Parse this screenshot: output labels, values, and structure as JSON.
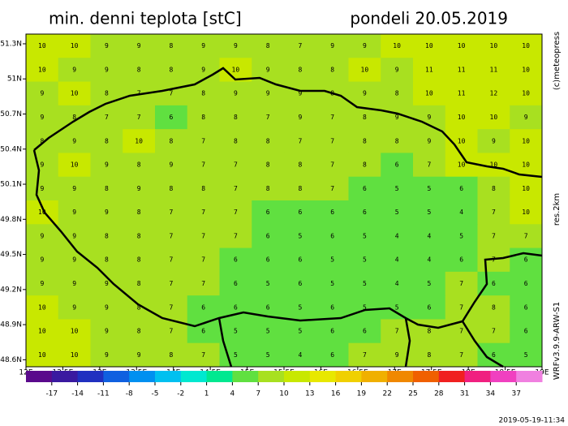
{
  "title": "min. denni teplota [stC]",
  "date": "pondeli 20.05.2019",
  "copyright": "(c)meteopress",
  "resolution": "res.2km",
  "model": "WRFv3.9.9-ARW-S1",
  "timestamp": "2019-05-19-11:34",
  "xlim": [
    12,
    19
  ],
  "ylim": [
    48.54,
    51.383
  ],
  "xticks": [
    {
      "value": 12,
      "label": "12E"
    },
    {
      "value": 12.5,
      "label": "12.5E"
    },
    {
      "value": 13,
      "label": "13E"
    },
    {
      "value": 13.5,
      "label": "13.5E"
    },
    {
      "value": 14,
      "label": "14E"
    },
    {
      "value": 14.5,
      "label": "14.5E"
    },
    {
      "value": 15,
      "label": "15E"
    },
    {
      "value": 15.5,
      "label": "15.5E"
    },
    {
      "value": 16,
      "label": "16E"
    },
    {
      "value": 16.5,
      "label": "16.5E"
    },
    {
      "value": 17,
      "label": "17E"
    },
    {
      "value": 17.5,
      "label": "17.5E"
    },
    {
      "value": 18,
      "label": "18E"
    },
    {
      "value": 18.5,
      "label": "18.5E"
    },
    {
      "value": 19,
      "label": "19E"
    }
  ],
  "yticks": [
    {
      "value": 51.3,
      "label": "51.3N"
    },
    {
      "value": 51,
      "label": "51N"
    },
    {
      "value": 50.7,
      "label": "50.7N"
    },
    {
      "value": 50.4,
      "label": "50.4N"
    },
    {
      "value": 50.1,
      "label": "50.1N"
    },
    {
      "value": 49.8,
      "label": "49.8N"
    },
    {
      "value": 49.5,
      "label": "49.5N"
    },
    {
      "value": 49.2,
      "label": "49.2N"
    },
    {
      "value": 48.9,
      "label": "48.9N"
    },
    {
      "value": 48.6,
      "label": "48.6N"
    }
  ],
  "colorbar": {
    "ticks": [
      -17,
      -14,
      -11,
      -8,
      -5,
      -2,
      1,
      4,
      7,
      10,
      13,
      16,
      19,
      22,
      25,
      28,
      31,
      34,
      37
    ],
    "colors": [
      "#5a0a8c",
      "#3a1aa0",
      "#2030c0",
      "#1060e0",
      "#0090f0",
      "#00c0f0",
      "#00e8d0",
      "#00e890",
      "#60e040",
      "#a8e020",
      "#c8e800",
      "#e8e800",
      "#f0d000",
      "#f0b000",
      "#f08800",
      "#f06000",
      "#f02020",
      "#f02080",
      "#f040c0",
      "#f080e0"
    ]
  },
  "grid": [
    [
      10,
      10,
      9,
      9,
      8,
      9,
      9,
      8,
      7,
      9,
      9,
      10,
      10,
      10,
      10,
      10
    ],
    [
      10,
      9,
      9,
      8,
      8,
      9,
      10,
      9,
      8,
      8,
      10,
      9,
      11,
      11,
      11,
      10
    ],
    [
      9,
      10,
      8,
      7,
      7,
      8,
      9,
      9,
      9,
      8,
      9,
      8,
      10,
      11,
      12,
      10
    ],
    [
      9,
      8,
      7,
      7,
      6,
      8,
      8,
      7,
      9,
      7,
      8,
      9,
      9,
      10,
      10,
      9
    ],
    [
      8,
      9,
      8,
      10,
      8,
      7,
      8,
      8,
      7,
      7,
      8,
      8,
      9,
      10,
      9,
      10
    ],
    [
      9,
      10,
      9,
      8,
      9,
      7,
      7,
      8,
      8,
      7,
      8,
      6,
      7,
      10,
      10,
      10
    ],
    [
      9,
      9,
      8,
      9,
      8,
      8,
      7,
      8,
      8,
      7,
      6,
      5,
      5,
      6,
      8,
      10
    ],
    [
      10,
      9,
      9,
      8,
      7,
      7,
      7,
      6,
      6,
      6,
      6,
      5,
      5,
      4,
      7,
      10
    ],
    [
      9,
      9,
      8,
      8,
      7,
      7,
      7,
      6,
      5,
      6,
      5,
      4,
      4,
      5,
      7,
      7
    ],
    [
      9,
      9,
      8,
      8,
      7,
      7,
      6,
      6,
      6,
      5,
      5,
      4,
      4,
      6,
      7,
      6
    ],
    [
      9,
      9,
      9,
      8,
      7,
      7,
      6,
      5,
      6,
      5,
      5,
      4,
      5,
      7,
      6,
      6
    ],
    [
      10,
      9,
      9,
      8,
      7,
      6,
      6,
      6,
      5,
      6,
      5,
      5,
      6,
      7,
      8,
      6
    ],
    [
      10,
      10,
      9,
      8,
      7,
      6,
      5,
      5,
      5,
      6,
      6,
      7,
      8,
      7,
      7,
      6
    ],
    [
      10,
      10,
      9,
      9,
      8,
      7,
      5,
      5,
      4,
      6,
      7,
      9,
      8,
      7,
      6,
      5
    ]
  ]
}
